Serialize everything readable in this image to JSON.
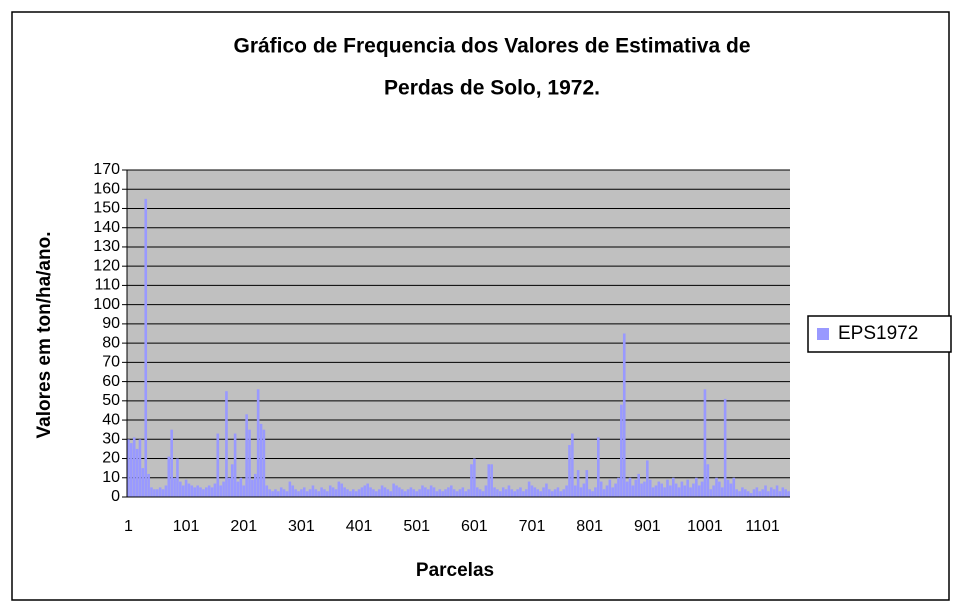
{
  "chart_data": {
    "type": "bar",
    "title_lines": [
      "Gráfico de Frequencia dos Valores de Estimativa de",
      "Perdas de Solo, 1972."
    ],
    "y_label": "Valores em ton/ha/ano.",
    "x_label": "Parcelas",
    "legend_position": "right",
    "grid": true,
    "ylim": [
      0,
      170
    ],
    "yticks": [
      0,
      10,
      20,
      30,
      40,
      50,
      60,
      70,
      80,
      90,
      100,
      110,
      120,
      130,
      140,
      150,
      160,
      170
    ],
    "categories": [
      1,
      null,
      null,
      null,
      null,
      null,
      null,
      null,
      null,
      null,
      null,
      null,
      null,
      null,
      null,
      null,
      null,
      null,
      null,
      null,
      101,
      null,
      null,
      null,
      null,
      null,
      null,
      null,
      null,
      null,
      null,
      null,
      null,
      null,
      null,
      null,
      null,
      null,
      null,
      null,
      201,
      null,
      null,
      null,
      null,
      null,
      null,
      null,
      null,
      null,
      null,
      null,
      null,
      null,
      null,
      null,
      null,
      null,
      null,
      null,
      301,
      null,
      null,
      null,
      null,
      null,
      null,
      null,
      null,
      null,
      null,
      null,
      null,
      null,
      null,
      null,
      null,
      null,
      null,
      null,
      401,
      null,
      null,
      null,
      null,
      null,
      null,
      null,
      null,
      null,
      null,
      null,
      null,
      null,
      null,
      null,
      null,
      null,
      null,
      null,
      501,
      null,
      null,
      null,
      null,
      null,
      null,
      null,
      null,
      null,
      null,
      null,
      null,
      null,
      null,
      null,
      null,
      null,
      null,
      null,
      601,
      null,
      null,
      null,
      null,
      null,
      null,
      null,
      null,
      null,
      null,
      null,
      null,
      null,
      null,
      null,
      null,
      null,
      null,
      null,
      701,
      null,
      null,
      null,
      null,
      null,
      null,
      null,
      null,
      null,
      null,
      null,
      null,
      null,
      null,
      null,
      null,
      null,
      null,
      null,
      801,
      null,
      null,
      null,
      null,
      null,
      null,
      null,
      null,
      null,
      null,
      null,
      null,
      null,
      null,
      null,
      null,
      null,
      null,
      null,
      901,
      null,
      null,
      null,
      null,
      null,
      null,
      null,
      null,
      null,
      null,
      null,
      null,
      null,
      null,
      null,
      null,
      null,
      null,
      null,
      1001,
      null,
      null,
      null,
      null,
      null,
      null,
      null,
      null,
      null,
      null,
      null,
      null,
      null,
      null,
      null,
      null,
      null,
      null,
      null,
      1101,
      null,
      null,
      null,
      null,
      null,
      null,
      null,
      null,
      null
    ],
    "series": [
      {
        "name": "EPS1972",
        "color": "#9999ff",
        "values": [
          30,
          28,
          31,
          25,
          30,
          15,
          155,
          12,
          5,
          4,
          4,
          5,
          4,
          6,
          21,
          35,
          10,
          20,
          8,
          6,
          9,
          7,
          6,
          5,
          6,
          5,
          4,
          5,
          6,
          5,
          7,
          33,
          6,
          8,
          55,
          10,
          17,
          33,
          8,
          10,
          6,
          43,
          35,
          9,
          12,
          56,
          38,
          35,
          6,
          4,
          3,
          4,
          3,
          5,
          4,
          3,
          8,
          6,
          4,
          3,
          4,
          5,
          3,
          4,
          6,
          4,
          3,
          5,
          4,
          3,
          6,
          5,
          4,
          8,
          7,
          5,
          4,
          3,
          4,
          3,
          4,
          5,
          6,
          7,
          5,
          4,
          3,
          4,
          6,
          5,
          4,
          3,
          7,
          6,
          5,
          4,
          3,
          4,
          5,
          4,
          3,
          4,
          6,
          5,
          4,
          6,
          5,
          3,
          4,
          3,
          4,
          5,
          6,
          4,
          3,
          4,
          5,
          3,
          4,
          17,
          20,
          5,
          4,
          3,
          6,
          17,
          17,
          5,
          4,
          3,
          5,
          4,
          6,
          4,
          3,
          4,
          5,
          3,
          4,
          8,
          6,
          5,
          4,
          3,
          5,
          7,
          4,
          3,
          4,
          5,
          3,
          4,
          6,
          27,
          33,
          6,
          14,
          5,
          7,
          14,
          4,
          3,
          5,
          31,
          8,
          4,
          6,
          9,
          5,
          7,
          10,
          48,
          85,
          8,
          10,
          6,
          9,
          12,
          7,
          8,
          19,
          9,
          5,
          6,
          8,
          7,
          5,
          9,
          6,
          10,
          7,
          5,
          8,
          6,
          9,
          5,
          7,
          10,
          6,
          8,
          56,
          17,
          4,
          6,
          10,
          8,
          5,
          51,
          9,
          7,
          10,
          4,
          3,
          5,
          4,
          3,
          2,
          4,
          5,
          3,
          4,
          6,
          3,
          5,
          4,
          6,
          3,
          5,
          4,
          3
        ]
      }
    ]
  }
}
